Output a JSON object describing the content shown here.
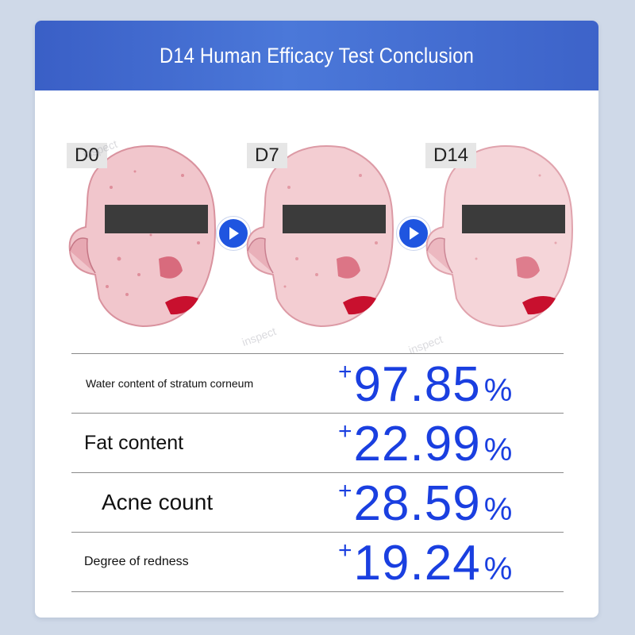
{
  "header": {
    "title": "D14 Human Efficacy Test Conclusion"
  },
  "panels": [
    {
      "label": "D0"
    },
    {
      "label": "D7"
    },
    {
      "label": "D14"
    }
  ],
  "watermark": "inspect",
  "colors": {
    "accent": "#1a3fe0",
    "header": "#4b78d9",
    "arrow": "#1f55e0"
  },
  "results": [
    {
      "label": "Water content of stratum corneum",
      "sign": "+",
      "value": "97.85",
      "unit": "%"
    },
    {
      "label": "Fat content",
      "sign": "+",
      "value": "22.99",
      "unit": "%"
    },
    {
      "label": "Acne count",
      "sign": "+",
      "value": "28.59",
      "unit": "%"
    },
    {
      "label": "Degree of redness",
      "sign": "+",
      "value": "19.24",
      "unit": "%"
    }
  ]
}
